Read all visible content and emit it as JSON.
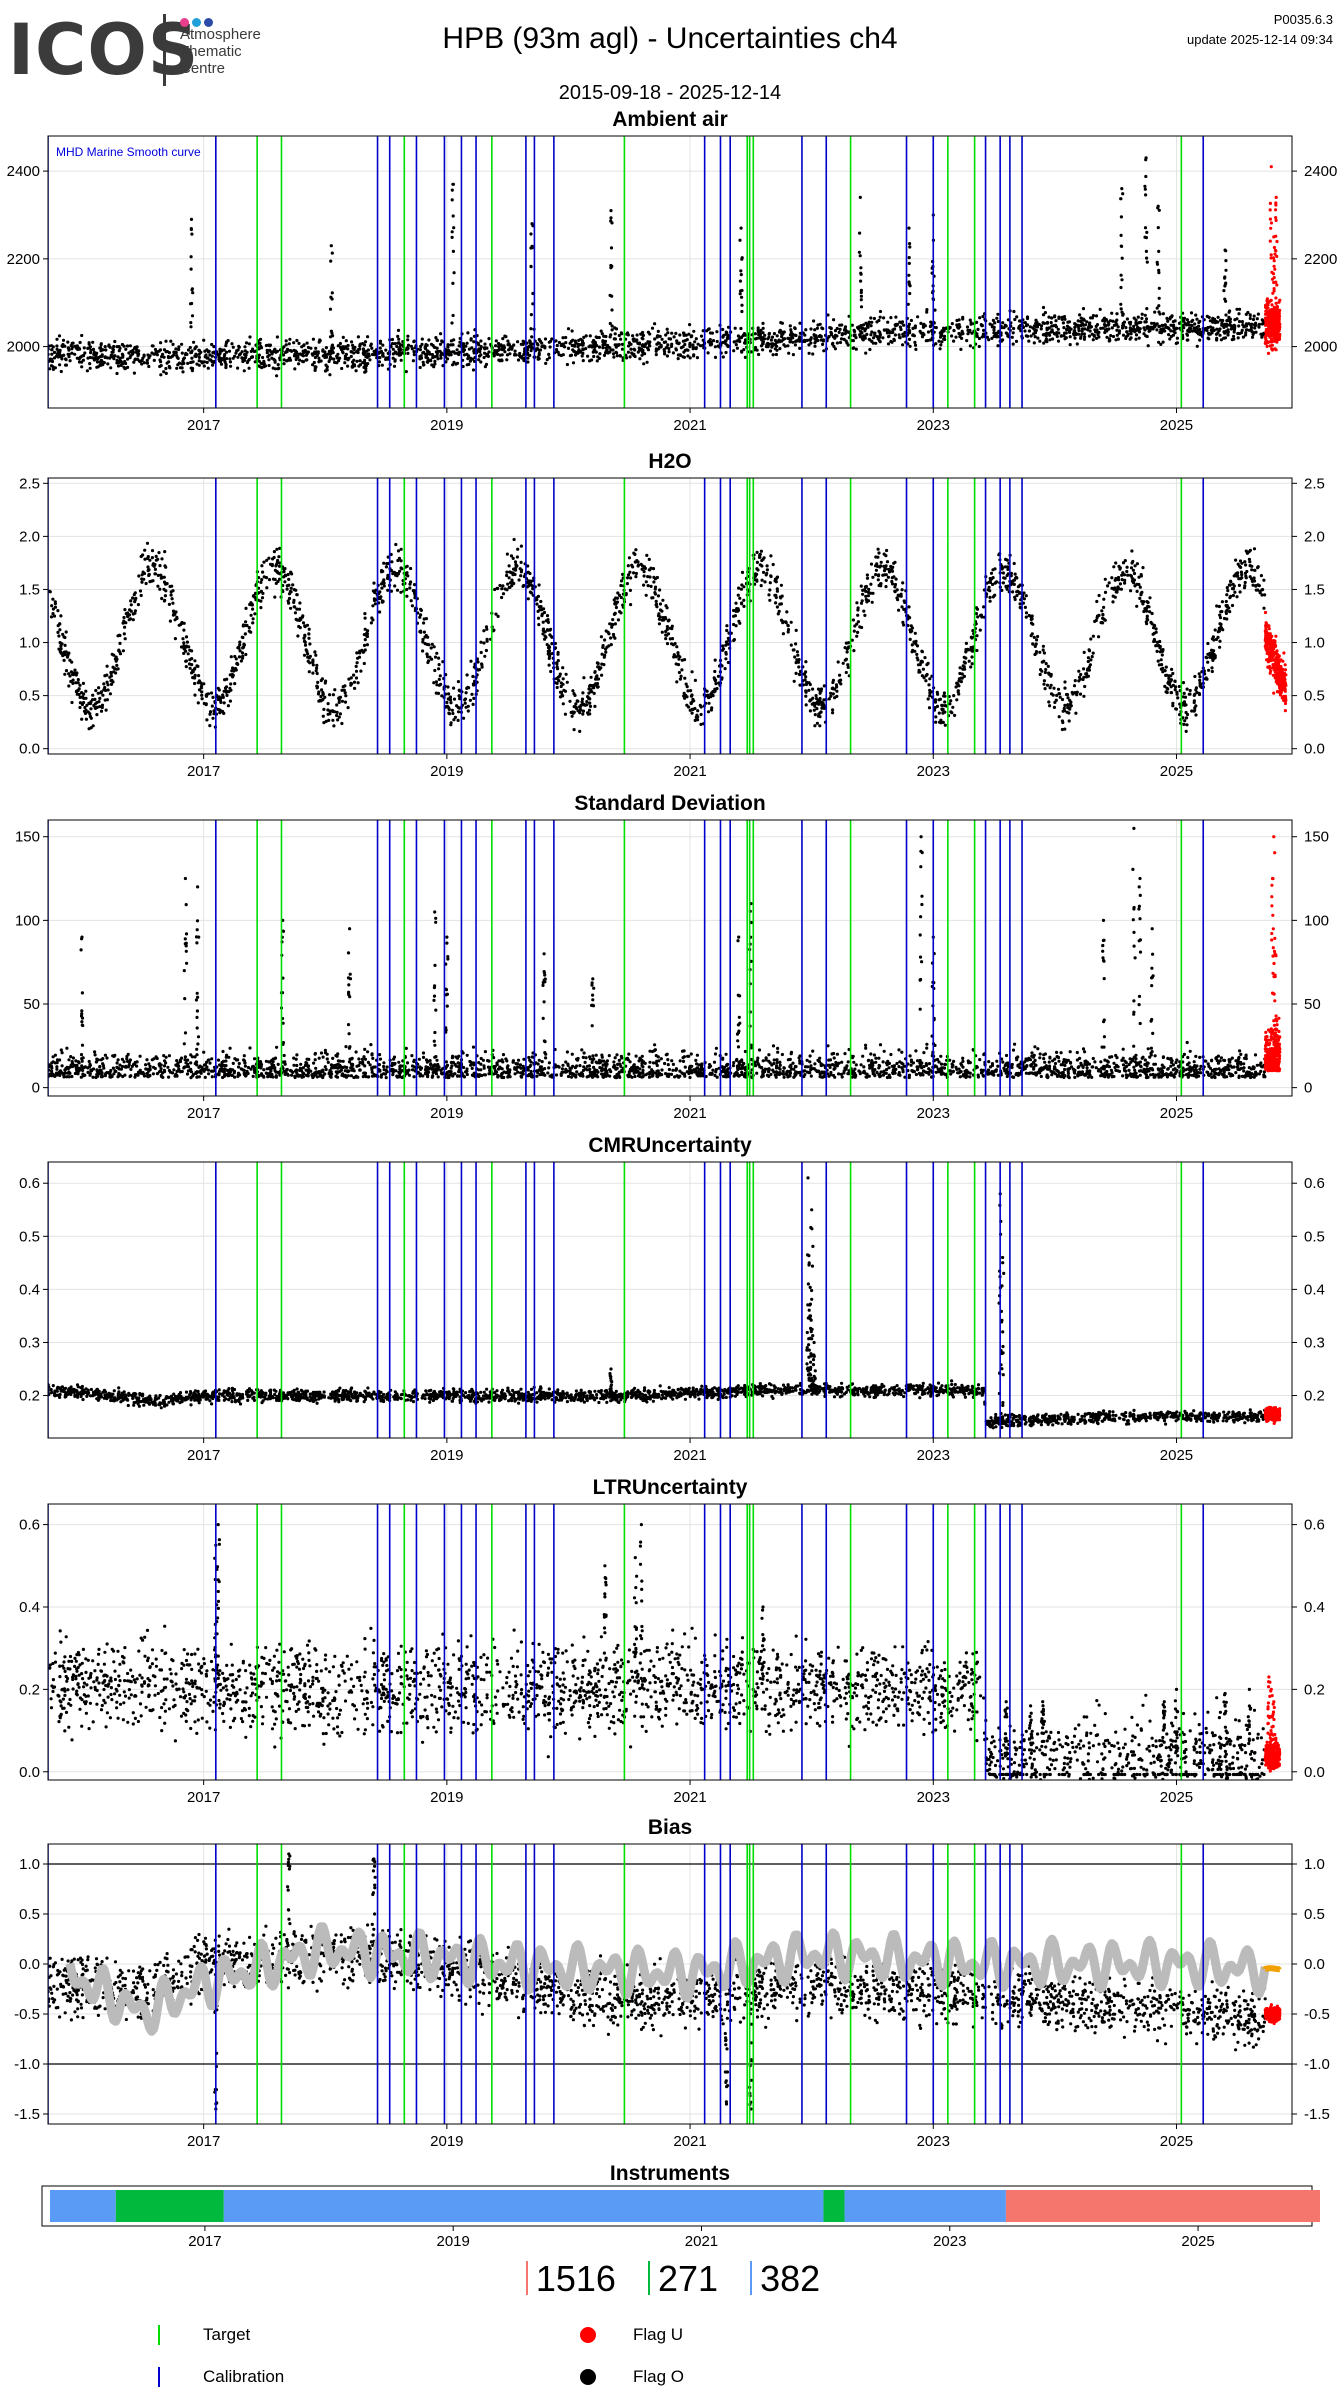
{
  "header": {
    "logo_text": "ICOS",
    "logo_subtitle": [
      "Atmosphere",
      "Thematic",
      "Centre"
    ],
    "logo_dot_colors": [
      "#e83e8c",
      "#1fa0d9",
      "#2c4aa8"
    ],
    "title": "HPB  (93m agl) - Uncertainties ch4",
    "version": "P0035.6.3",
    "update": "update  2025-12-14 09:34",
    "date_range": "2015-09-18 - 2025-12-14"
  },
  "colors": {
    "target": "#00dd00",
    "calibration": "#0000cc",
    "flag_u": "#ff0000",
    "flag_o": "#000000",
    "smooth": "#bbbbbb",
    "orange": "#f0a000",
    "grid": "#e3e3e3"
  },
  "x_axis": {
    "range": [
      2015.72,
      2025.95
    ],
    "ticks": [
      2017,
      2019,
      2021,
      2023,
      2025
    ],
    "tick_labels": [
      "2017",
      "2019",
      "2021",
      "2023",
      "2025"
    ]
  },
  "events": {
    "calibration": [
      2015.72,
      2017.1,
      2018.43,
      2018.53,
      2018.75,
      2018.98,
      2019.12,
      2019.24,
      2019.65,
      2019.72,
      2019.88,
      2021.12,
      2021.25,
      2021.33,
      2021.92,
      2022.12,
      2022.78,
      2023.0,
      2023.43,
      2023.55,
      2023.63,
      2023.73,
      2025.22
    ],
    "target": [
      2017.44,
      2017.64,
      2018.65,
      2019.37,
      2020.46,
      2021.47,
      2021.49,
      2021.52,
      2022.32,
      2023.12,
      2023.34,
      2025.04
    ]
  },
  "chart_data": [
    {
      "type": "scatter",
      "title": "Ambient air",
      "ylim": [
        1860,
        2480
      ],
      "yticks": [
        2000,
        2200,
        2400
      ],
      "annotation": "MHD Marine Smooth curve",
      "series": [
        {
          "role": "flag_o",
          "x_range": [
            2015.72,
            2025.73
          ],
          "baseline": [
            [
              2015.8,
              1985
            ],
            [
              2016.5,
              1975
            ],
            [
              2017.5,
              1978
            ],
            [
              2018.5,
              1985
            ],
            [
              2019.5,
              1995
            ],
            [
              2020.5,
              2000
            ],
            [
              2021.5,
              2015
            ],
            [
              2022.5,
              2030
            ],
            [
              2023.5,
              2040
            ],
            [
              2024.5,
              2045
            ],
            [
              2025.7,
              2045
            ]
          ],
          "spread": 60,
          "spikes": [
            [
              2016.9,
              2290
            ],
            [
              2018.05,
              2230
            ],
            [
              2019.05,
              2370
            ],
            [
              2019.7,
              2280
            ],
            [
              2020.35,
              2310
            ],
            [
              2021.42,
              2270
            ],
            [
              2022.4,
              2340
            ],
            [
              2022.8,
              2270
            ],
            [
              2023.0,
              2300
            ],
            [
              2024.55,
              2360
            ],
            [
              2024.75,
              2430
            ],
            [
              2024.85,
              2320
            ],
            [
              2025.4,
              2220
            ]
          ]
        },
        {
          "role": "flag_u",
          "x_range": [
            2025.73,
            2025.85
          ],
          "baseline": [
            [
              2025.73,
              2050
            ],
            [
              2025.85,
              2050
            ]
          ],
          "spread": 90,
          "spikes": [
            [
              2025.78,
              2410
            ],
            [
              2025.82,
              2340
            ],
            [
              2025.8,
              2250
            ]
          ]
        }
      ]
    },
    {
      "type": "scatter",
      "title": "H2O",
      "ylim": [
        -0.05,
        2.55
      ],
      "yticks": [
        0.0,
        0.5,
        1.0,
        1.5,
        2.0,
        2.5
      ],
      "ytick_labels": [
        "0.0",
        "0.5",
        "1.0",
        "1.5",
        "2.0",
        "2.5"
      ],
      "seasonal": {
        "mean": 1.05,
        "amplitude": 0.65,
        "peak_phase": 0.58
      },
      "series": [
        {
          "role": "flag_o",
          "x_range": [
            2015.72,
            2025.73
          ],
          "spread": 0.35
        },
        {
          "role": "flag_u",
          "x_range": [
            2025.73,
            2025.9
          ],
          "spread": 0.35,
          "baseline": [
            [
              2025.73,
              1.05
            ],
            [
              2025.9,
              0.55
            ]
          ]
        }
      ]
    },
    {
      "type": "scatter",
      "title": "Standard Deviation",
      "ylim": [
        -5,
        160
      ],
      "yticks": [
        0,
        50,
        100,
        150
      ],
      "series": [
        {
          "role": "flag_o",
          "x_range": [
            2015.72,
            2025.73
          ],
          "baseline": [
            [
              2015.8,
              6
            ],
            [
              2025.7,
              6
            ]
          ],
          "spread": 20,
          "spikes": [
            [
              2016.0,
              90
            ],
            [
              2016.85,
              125
            ],
            [
              2016.95,
              120
            ],
            [
              2017.65,
              100
            ],
            [
              2018.2,
              95
            ],
            [
              2018.9,
              105
            ],
            [
              2019.0,
              90
            ],
            [
              2019.8,
              80
            ],
            [
              2020.2,
              65
            ],
            [
              2021.4,
              90
            ],
            [
              2021.5,
              110
            ],
            [
              2022.9,
              150
            ],
            [
              2023.0,
              90
            ],
            [
              2024.4,
              100
            ],
            [
              2024.65,
              155
            ],
            [
              2024.7,
              125
            ],
            [
              2024.8,
              95
            ]
          ]
        },
        {
          "role": "flag_u",
          "x_range": [
            2025.73,
            2025.85
          ],
          "baseline": [
            [
              2025.73,
              10
            ],
            [
              2025.85,
              10
            ]
          ],
          "spread": 30,
          "spikes": [
            [
              2025.8,
              150
            ],
            [
              2025.79,
              125
            ],
            [
              2025.81,
              80
            ]
          ]
        }
      ]
    },
    {
      "type": "scatter",
      "title": "CMRUncertainty",
      "ylim": [
        0.12,
        0.64
      ],
      "yticks": [
        0.2,
        0.3,
        0.4,
        0.5,
        0.6
      ],
      "ytick_labels": [
        "0.2",
        "0.3",
        "0.4",
        "0.5",
        "0.6"
      ],
      "series": [
        {
          "role": "flag_o",
          "x_range": [
            2015.72,
            2025.73
          ],
          "baseline": [
            [
              2015.8,
              0.21
            ],
            [
              2016.6,
              0.19
            ],
            [
              2017.1,
              0.2
            ],
            [
              2019.5,
              0.2
            ],
            [
              2020.5,
              0.2
            ],
            [
              2021.5,
              0.21
            ],
            [
              2022.5,
              0.21
            ],
            [
              2023.42,
              0.21
            ],
            [
              2023.43,
              0.15
            ],
            [
              2024.5,
              0.16
            ],
            [
              2025.7,
              0.16
            ]
          ],
          "spread": 0.02,
          "spikes": [
            [
              2021.97,
              0.61
            ],
            [
              2022.0,
              0.55
            ],
            [
              2021.98,
              0.45
            ],
            [
              2021.99,
              0.35
            ],
            [
              2022.02,
              0.3
            ],
            [
              2023.55,
              0.58
            ],
            [
              2023.57,
              0.46
            ],
            [
              2020.35,
              0.25
            ]
          ]
        },
        {
          "role": "flag_u",
          "x_range": [
            2025.73,
            2025.85
          ],
          "baseline": [
            [
              2025.73,
              0.165
            ],
            [
              2025.85,
              0.165
            ]
          ],
          "spread": 0.02
        }
      ]
    },
    {
      "type": "scatter",
      "title": "LTRUncertainty",
      "ylim": [
        -0.02,
        0.65
      ],
      "yticks": [
        0.0,
        0.2,
        0.4,
        0.6
      ],
      "ytick_labels": [
        "0.0",
        "0.2",
        "0.4",
        "0.6"
      ],
      "series": [
        {
          "role": "flag_o",
          "x_range": [
            2015.72,
            2025.73
          ],
          "baseline": [
            [
              2015.8,
              0.22
            ],
            [
              2017.5,
              0.2
            ],
            [
              2019.5,
              0.2
            ],
            [
              2021.5,
              0.21
            ],
            [
              2023.42,
              0.2
            ],
            [
              2023.43,
              0.03
            ],
            [
              2025.7,
              0.03
            ]
          ],
          "spread": 0.18,
          "spikes": [
            [
              2017.12,
              0.6
            ],
            [
              2017.1,
              0.55
            ],
            [
              2020.3,
              0.5
            ],
            [
              2020.55,
              0.52
            ],
            [
              2020.6,
              0.6
            ],
            [
              2021.6,
              0.4
            ],
            [
              2023.6,
              0.17
            ],
            [
              2023.8,
              0.16
            ],
            [
              2023.9,
              0.17
            ],
            [
              2024.9,
              0.17
            ],
            [
              2025.0,
              0.2
            ],
            [
              2025.4,
              0.19
            ],
            [
              2025.6,
              0.2
            ]
          ]
        },
        {
          "role": "flag_u",
          "x_range": [
            2025.73,
            2025.85
          ],
          "baseline": [
            [
              2025.73,
              0.04
            ],
            [
              2025.85,
              0.04
            ]
          ],
          "spread": 0.05,
          "spikes": [
            [
              2025.78,
              0.2
            ],
            [
              2025.8,
              0.17
            ],
            [
              2025.76,
              0.23
            ]
          ]
        }
      ]
    },
    {
      "type": "scatter",
      "title": "Bias",
      "ylim": [
        -1.6,
        1.2
      ],
      "yticks": [
        -1.5,
        -1.0,
        -0.5,
        0.0,
        0.5,
        1.0
      ],
      "ytick_labels": [
        "-1.5",
        "-1.0",
        "-0.5",
        "0.0",
        "0.5",
        "1.0"
      ],
      "hlines": [
        -1.0,
        1.0
      ],
      "series": [
        {
          "role": "flag_o",
          "x_range": [
            2015.72,
            2025.73
          ],
          "baseline": [
            [
              2015.8,
              -0.2
            ],
            [
              2016.5,
              -0.3
            ],
            [
              2017.0,
              0.0
            ],
            [
              2018.0,
              0.1
            ],
            [
              2019.0,
              0.0
            ],
            [
              2020.0,
              -0.3
            ],
            [
              2021.0,
              -0.35
            ],
            [
              2022.0,
              -0.2
            ],
            [
              2023.42,
              -0.3
            ],
            [
              2023.45,
              -0.35
            ],
            [
              2024.5,
              -0.4
            ],
            [
              2025.7,
              -0.55
            ]
          ],
          "spread": 0.5,
          "spikes": [
            [
              2017.1,
              -1.45
            ],
            [
              2017.7,
              1.1
            ],
            [
              2018.4,
              1.05
            ],
            [
              2021.3,
              -1.4
            ],
            [
              2021.5,
              -1.45
            ]
          ]
        },
        {
          "role": "flag_u",
          "x_range": [
            2025.73,
            2025.85
          ],
          "baseline": [
            [
              2025.73,
              -0.5
            ],
            [
              2025.85,
              -0.5
            ]
          ],
          "spread": 0.12
        },
        {
          "role": "smooth",
          "x_range": [
            2015.9,
            2025.73
          ],
          "baseline": [
            [
              2015.9,
              -0.1
            ],
            [
              2016.5,
              -0.5
            ],
            [
              2017.0,
              -0.2
            ],
            [
              2018.0,
              0.15
            ],
            [
              2019.0,
              0.05
            ],
            [
              2020.0,
              -0.05
            ],
            [
              2021.0,
              -0.1
            ],
            [
              2022.0,
              0.1
            ],
            [
              2023.42,
              0.0
            ],
            [
              2023.43,
              0.0
            ],
            [
              2025.0,
              0.0
            ],
            [
              2025.7,
              -0.05
            ]
          ],
          "wiggle": 0.25
        },
        {
          "role": "orange",
          "x_range": [
            2025.73,
            2025.85
          ],
          "baseline": [
            [
              2025.73,
              -0.05
            ],
            [
              2025.85,
              -0.05
            ]
          ],
          "wiggle": 0.01
        }
      ]
    }
  ],
  "instruments": {
    "title": "Instruments",
    "ticks": [
      2017,
      2019,
      2021,
      2023,
      2025
    ],
    "tick_labels": [
      "2017",
      "2019",
      "2021",
      "2023",
      "2025"
    ],
    "segments": [
      {
        "start": 2015.72,
        "end": 2016.25,
        "color": "#5a9cf5"
      },
      {
        "start": 2016.25,
        "end": 2017.12,
        "color": "#00b93d"
      },
      {
        "start": 2017.12,
        "end": 2021.95,
        "color": "#5a9cf5"
      },
      {
        "start": 2021.95,
        "end": 2022.12,
        "color": "#00b93d"
      },
      {
        "start": 2022.12,
        "end": 2023.42,
        "color": "#5a9cf5"
      },
      {
        "start": 2023.42,
        "end": 2025.95,
        "color": "#f4766c"
      }
    ]
  },
  "counts": [
    {
      "value": "1516",
      "color": "#f4766c"
    },
    {
      "value": "271",
      "color": "#00b93d"
    },
    {
      "value": "382",
      "color": "#5a9cf5"
    }
  ],
  "legend": {
    "target": "Target",
    "calibration": "Calibration",
    "flag_u": "Flag U",
    "flag_o": "Flag O"
  }
}
